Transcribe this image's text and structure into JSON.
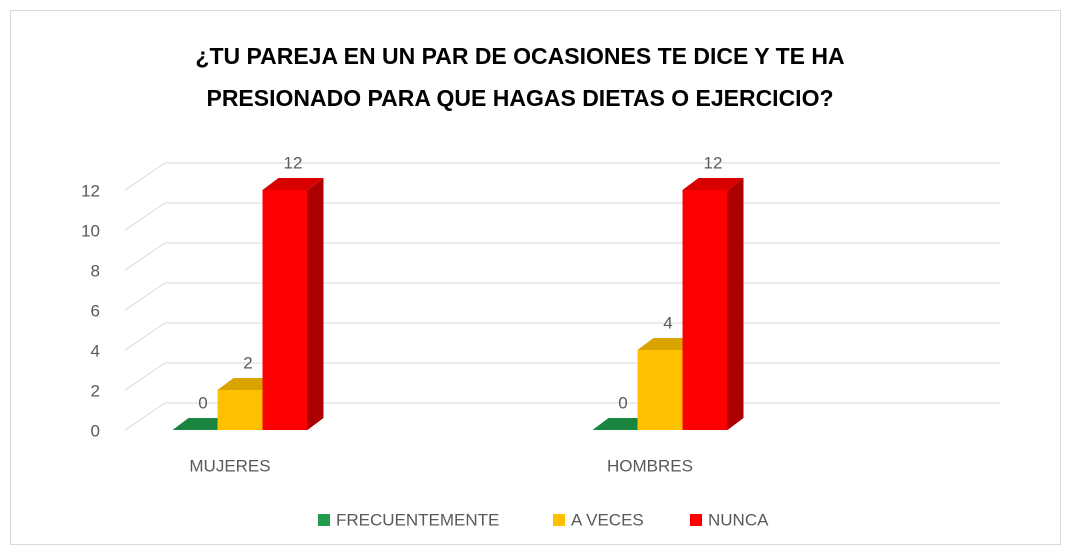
{
  "chart_data": {
    "type": "bar3d",
    "title": [
      "¿TU PAREJA EN UN PAR DE OCASIONES TE DICE Y TE HA",
      "PRESIONADO PARA QUE HAGAS DIETAS O EJERCICIO?"
    ],
    "categories": [
      "MUJERES",
      "HOMBRES"
    ],
    "series": [
      {
        "name": "FRECUENTEMENTE",
        "color": "#1f9d4a",
        "values": [
          0,
          0
        ]
      },
      {
        "name": "A VECES",
        "color": "#ffc000",
        "values": [
          2,
          4
        ]
      },
      {
        "name": "NUNCA",
        "color": "#ff0000",
        "values": [
          12,
          12
        ]
      }
    ],
    "ylim": [
      0,
      12
    ],
    "yticks": [
      0,
      2,
      4,
      6,
      8,
      10,
      12
    ],
    "grid": true,
    "legend": "bottom"
  }
}
